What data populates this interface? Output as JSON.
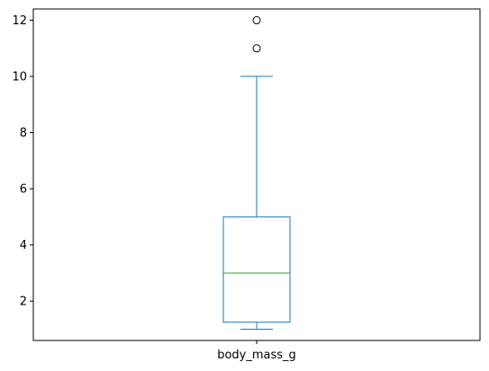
{
  "chart_data": {
    "type": "box",
    "categories": [
      "body_mass_g"
    ],
    "series": [
      {
        "label": "body_mass_g",
        "whisker_low": 1,
        "q1": 1.25,
        "median": 3,
        "q3": 5,
        "whisker_high": 10,
        "outliers": [
          11,
          12
        ]
      }
    ],
    "title": "",
    "xlabel": "",
    "ylabel": "",
    "ylim": [
      0.6,
      12.4
    ],
    "yticks": [
      2,
      4,
      6,
      8,
      10,
      12
    ],
    "grid": false,
    "colors": {
      "box": "#1f77b4",
      "median": "#2ca02c",
      "outlier": "#000000"
    }
  }
}
